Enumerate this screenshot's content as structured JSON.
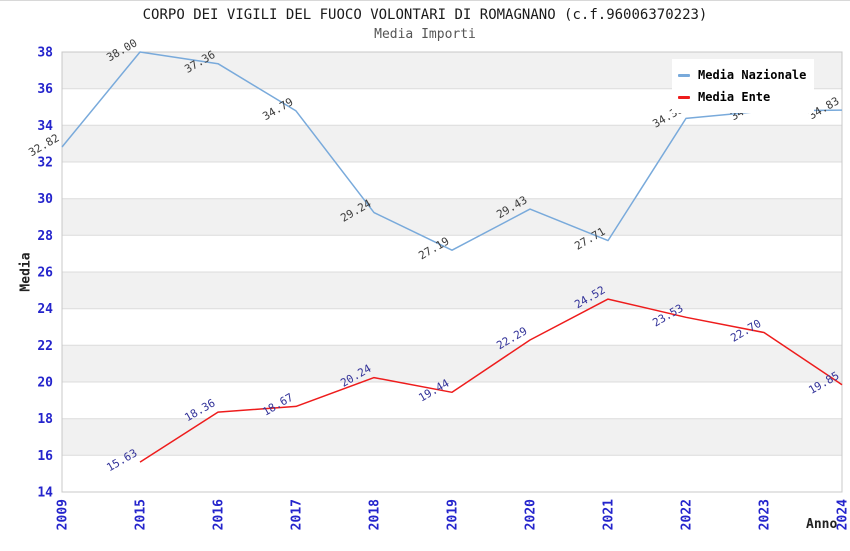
{
  "title": "CORPO DEI VIGILI DEL FUOCO VOLONTARI DI ROMAGNANO (c.f.96006370223)",
  "subtitle": "Media Importi",
  "legend": {
    "items": [
      {
        "label": "Media Nazionale",
        "color": "#79aadb"
      },
      {
        "label": "Media Ente",
        "color": "#ee1c1c"
      }
    ]
  },
  "chart_data": {
    "type": "line",
    "title": "CORPO DEI VIGILI DEL FUOCO VOLONTARI DI ROMAGNANO (c.f.96006370223)",
    "subtitle": "Media Importi",
    "xlabel": "Anno",
    "ylabel": "Media",
    "x_categories": [
      "2009",
      "2015",
      "2016",
      "2017",
      "2018",
      "2019",
      "2020",
      "2021",
      "2022",
      "2023",
      "2024"
    ],
    "ylim": [
      14,
      38
    ],
    "ytick_step": 2,
    "grid": true,
    "legend_position": "top-right",
    "tick_color": "#2424cc",
    "band_color": "#f1f1f1",
    "grid_color": "#dcdcdc",
    "border_color": "#c8c8c8",
    "series": [
      {
        "id": "nazionale",
        "name": "Media Nazionale",
        "color": "#79aadb",
        "label_color": "#3c3c3c",
        "values": [
          32.82,
          38.0,
          37.36,
          34.79,
          29.24,
          27.19,
          29.43,
          27.71,
          34.38,
          34.78,
          34.83
        ]
      },
      {
        "id": "ente",
        "name": "Media Ente",
        "color": "#ee1c1c",
        "label_color": "#333399",
        "values": [
          null,
          15.63,
          18.36,
          18.67,
          20.24,
          19.44,
          22.29,
          24.52,
          23.53,
          22.7,
          19.85
        ]
      }
    ]
  }
}
